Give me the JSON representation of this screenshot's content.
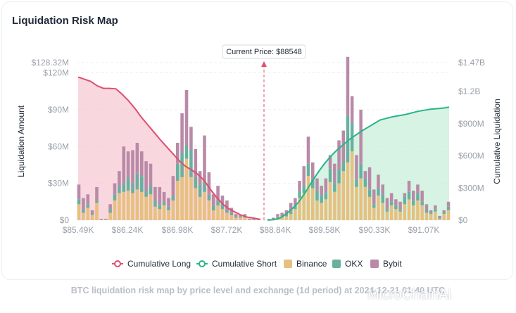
{
  "card": {
    "title": "Liquidation Risk Map"
  },
  "caption": "BTC liquidation risk map by price level and exchange (1d period) at 2024-12-21 01:40 UTC",
  "watermark": "MicroChainAi",
  "chart_data": {
    "type": "bar",
    "title": "Liquidation Risk Map",
    "xlabel": "",
    "ylabel": "Liquidation Amount",
    "y2label": "Cumulative Liquidation",
    "current_price_label": "Current Price: $88548",
    "current_price": 88548,
    "x_ticks": [
      "$85.49K",
      "$86.24K",
      "$86.98K",
      "$87.72K",
      "$88.84K",
      "$89.58K",
      "$90.33K",
      "$91.07K"
    ],
    "y_ticks": [
      "$0",
      "$30M",
      "$60M",
      "$90M",
      "$120M"
    ],
    "y_top_label": "$128.32M",
    "ylim": [
      0,
      128.32
    ],
    "y2_ticks": [
      "$0",
      "$300M",
      "$600M",
      "$900M",
      "$1.2B",
      "$1.47B"
    ],
    "y2lim": [
      0,
      1470
    ],
    "legend_position": "bottom",
    "colors": {
      "binance": "#e7c07f",
      "okx": "#6ab09f",
      "bybit": "#b98aa8",
      "long": "#de4f6f",
      "short": "#29b48a",
      "long_fill": "#f6c9d3",
      "short_fill": "#c9efd9"
    },
    "series": [
      {
        "name": "Cumulative Long",
        "type": "line"
      },
      {
        "name": "Cumulative Short",
        "type": "line"
      },
      {
        "name": "Binance",
        "type": "bar"
      },
      {
        "name": "OKX",
        "type": "bar"
      },
      {
        "name": "Bybit",
        "type": "bar"
      }
    ],
    "long_bars": [
      [
        13,
        4,
        12
      ],
      [
        6,
        3,
        9
      ],
      [
        10,
        3,
        8
      ],
      [
        4,
        1,
        3
      ],
      [
        14,
        2,
        11
      ],
      [
        0.5,
        0,
        0.5
      ],
      [
        0.5,
        0,
        0.5
      ],
      [
        6,
        3,
        4
      ],
      [
        16,
        5,
        9
      ],
      [
        22,
        6,
        12
      ],
      [
        23,
        7,
        30
      ],
      [
        24,
        11,
        21
      ],
      [
        22,
        8,
        27
      ],
      [
        25,
        13,
        25
      ],
      [
        23,
        13,
        20
      ],
      [
        19,
        5,
        24
      ],
      [
        21,
        7,
        18
      ],
      [
        11,
        5,
        11
      ],
      [
        9,
        4,
        14
      ],
      [
        12,
        3,
        8
      ],
      [
        8,
        3,
        7
      ],
      [
        16,
        4,
        16
      ],
      [
        32,
        14,
        17
      ],
      [
        35,
        20,
        32
      ],
      [
        50,
        11,
        45
      ],
      [
        35,
        22,
        19
      ],
      [
        26,
        9,
        23
      ],
      [
        19,
        10,
        11
      ],
      [
        23,
        9,
        37
      ],
      [
        16,
        5,
        18
      ],
      [
        8,
        4,
        9
      ],
      [
        12,
        4,
        12
      ],
      [
        9,
        4,
        7
      ],
      [
        6,
        2,
        8
      ],
      [
        4,
        2,
        4
      ],
      [
        2,
        1,
        2
      ],
      [
        2,
        1,
        1
      ],
      [
        2,
        1,
        2
      ],
      [
        0.5,
        0,
        0.5
      ],
      [
        0.5,
        0,
        0.5
      ],
      [
        0.5,
        0,
        0.5
      ]
    ],
    "short_bars": [
      [
        0.5,
        0,
        0.5
      ],
      [
        1,
        0,
        1
      ],
      [
        2,
        1,
        2
      ],
      [
        2,
        1,
        3
      ],
      [
        3,
        1,
        4
      ],
      [
        5,
        2,
        7
      ],
      [
        9,
        3,
        6
      ],
      [
        18,
        6,
        8
      ],
      [
        22,
        7,
        15
      ],
      [
        36,
        10,
        22
      ],
      [
        26,
        8,
        13
      ],
      [
        16,
        8,
        10
      ],
      [
        14,
        6,
        8
      ],
      [
        17,
        5,
        12
      ],
      [
        31,
        11,
        11
      ],
      [
        23,
        7,
        16
      ],
      [
        30,
        11,
        24
      ],
      [
        40,
        7,
        26
      ],
      [
        47,
        38,
        48
      ],
      [
        56,
        23,
        22
      ],
      [
        27,
        6,
        20
      ],
      [
        34,
        12,
        44
      ],
      [
        27,
        7,
        6
      ],
      [
        19,
        6,
        18
      ],
      [
        10,
        3,
        12
      ],
      [
        20,
        6,
        11
      ],
      [
        14,
        7,
        8
      ],
      [
        7,
        2,
        9
      ],
      [
        12,
        3,
        7
      ],
      [
        9,
        3,
        5
      ],
      [
        7,
        2,
        6
      ],
      [
        13,
        6,
        3
      ],
      [
        17,
        6,
        9
      ],
      [
        12,
        4,
        8
      ],
      [
        16,
        6,
        7
      ],
      [
        12,
        3,
        9
      ],
      [
        6,
        2,
        5
      ],
      [
        5,
        1,
        2
      ],
      [
        7,
        2,
        3
      ],
      [
        1,
        0.5,
        2
      ],
      [
        5,
        1,
        2
      ],
      [
        8,
        3,
        4
      ]
    ],
    "long_cum_millions": [
      1335,
      1315,
      1295,
      1255,
      1230,
      1230,
      1225,
      1175,
      1115,
      1045,
      965,
      895,
      825,
      755,
      690,
      625,
      560,
      505,
      470,
      430,
      375,
      290,
      215,
      150,
      105,
      75,
      45,
      27,
      18,
      8
    ],
    "short_cum_millions": [
      0,
      5,
      20,
      60,
      110,
      170,
      255,
      350,
      440,
      520,
      590,
      650,
      700,
      750,
      790,
      830,
      865,
      900,
      935,
      950,
      965,
      975,
      985,
      1000,
      1015,
      1025,
      1035,
      1040,
      1045,
      1055
    ]
  }
}
